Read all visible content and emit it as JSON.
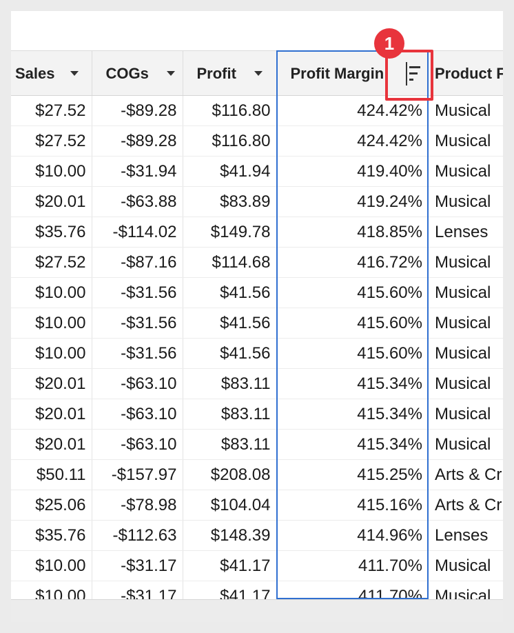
{
  "columns": {
    "sales": "Sales",
    "cogs": "COGs",
    "profit": "Profit",
    "margin": "Profit Margin",
    "product": "Product F"
  },
  "callout": {
    "number": "1"
  },
  "rows": [
    {
      "sales": "$27.52",
      "cogs": "-$89.28",
      "profit": "$116.80",
      "margin": "424.42%",
      "product": "Musical"
    },
    {
      "sales": "$27.52",
      "cogs": "-$89.28",
      "profit": "$116.80",
      "margin": "424.42%",
      "product": "Musical"
    },
    {
      "sales": "$10.00",
      "cogs": "-$31.94",
      "profit": "$41.94",
      "margin": "419.40%",
      "product": "Musical"
    },
    {
      "sales": "$20.01",
      "cogs": "-$63.88",
      "profit": "$83.89",
      "margin": "419.24%",
      "product": "Musical"
    },
    {
      "sales": "$35.76",
      "cogs": "-$114.02",
      "profit": "$149.78",
      "margin": "418.85%",
      "product": "Lenses"
    },
    {
      "sales": "$27.52",
      "cogs": "-$87.16",
      "profit": "$114.68",
      "margin": "416.72%",
      "product": "Musical"
    },
    {
      "sales": "$10.00",
      "cogs": "-$31.56",
      "profit": "$41.56",
      "margin": "415.60%",
      "product": "Musical"
    },
    {
      "sales": "$10.00",
      "cogs": "-$31.56",
      "profit": "$41.56",
      "margin": "415.60%",
      "product": "Musical"
    },
    {
      "sales": "$10.00",
      "cogs": "-$31.56",
      "profit": "$41.56",
      "margin": "415.60%",
      "product": "Musical"
    },
    {
      "sales": "$20.01",
      "cogs": "-$63.10",
      "profit": "$83.11",
      "margin": "415.34%",
      "product": "Musical"
    },
    {
      "sales": "$20.01",
      "cogs": "-$63.10",
      "profit": "$83.11",
      "margin": "415.34%",
      "product": "Musical"
    },
    {
      "sales": "$20.01",
      "cogs": "-$63.10",
      "profit": "$83.11",
      "margin": "415.34%",
      "product": "Musical"
    },
    {
      "sales": "$50.11",
      "cogs": "-$157.97",
      "profit": "$208.08",
      "margin": "415.25%",
      "product": "Arts & Cr"
    },
    {
      "sales": "$25.06",
      "cogs": "-$78.98",
      "profit": "$104.04",
      "margin": "415.16%",
      "product": "Arts & Cr"
    },
    {
      "sales": "$35.76",
      "cogs": "-$112.63",
      "profit": "$148.39",
      "margin": "414.96%",
      "product": "Lenses"
    },
    {
      "sales": "$10.00",
      "cogs": "-$31.17",
      "profit": "$41.17",
      "margin": "411.70%",
      "product": "Musical"
    },
    {
      "sales": "$10.00",
      "cogs": "-$31.17",
      "profit": "$41.17",
      "margin": "411.70%",
      "product": "Musical"
    }
  ]
}
